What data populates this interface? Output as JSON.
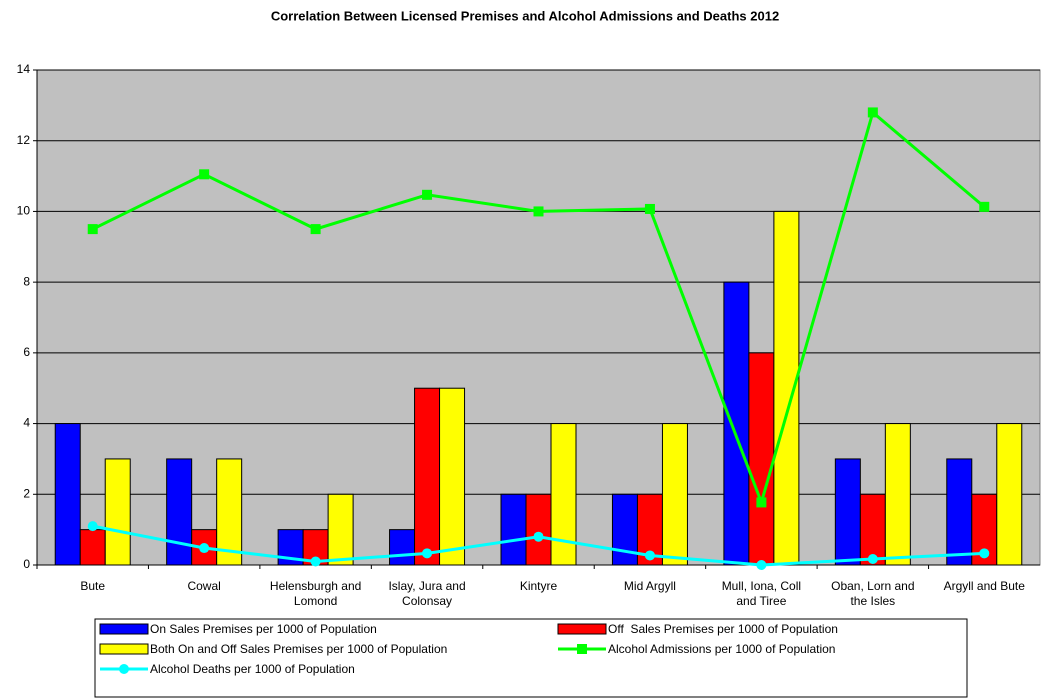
{
  "chart_data": {
    "type": "bar",
    "title": "Correlation Between Licensed Premises and Alcohol Admissions and Deaths 2012",
    "categories": [
      "Bute",
      "Cowal",
      "Helensburgh and Lomond",
      "Islay, Jura and Colonsay",
      "Kintyre",
      "Mid Argyll",
      "Mull, Iona, Coll and Tiree",
      "Oban, Lorn and the Isles",
      "Argyll and Bute"
    ],
    "series": [
      {
        "name": "On Sales Premises per 1000 of Population",
        "type": "bar",
        "color": "#0000ff",
        "values": [
          4,
          3,
          1,
          1,
          2,
          2,
          8,
          3,
          3
        ]
      },
      {
        "name": "Off  Sales Premises per 1000 of Population",
        "type": "bar",
        "color": "#ff0000",
        "values": [
          1,
          1,
          1,
          5,
          2,
          2,
          6,
          2,
          2
        ]
      },
      {
        "name": "Both On and Off Sales Premises per 1000 of Population",
        "type": "bar",
        "color": "#ffff00",
        "values": [
          3,
          3,
          2,
          5,
          4,
          4,
          10,
          4,
          4
        ]
      },
      {
        "name": "Alcohol Admissions per 1000 of Population",
        "type": "line",
        "marker": "square",
        "color": "#00ff00",
        "values": [
          9.5,
          11.05,
          9.5,
          10.47,
          10,
          10.07,
          1.77,
          12.8,
          10.13
        ]
      },
      {
        "name": "Alcohol Deaths per 1000 of Population",
        "type": "line",
        "marker": "circle",
        "color": "#00ffff",
        "values": [
          1.1,
          0.48,
          0.1,
          0.33,
          0.8,
          0.27,
          0.0,
          0.17,
          0.33
        ]
      }
    ],
    "ylim": [
      0,
      14
    ],
    "yticks": [
      0,
      2,
      4,
      6,
      8,
      10,
      12,
      14
    ],
    "grid": true,
    "legend": "bottom"
  }
}
